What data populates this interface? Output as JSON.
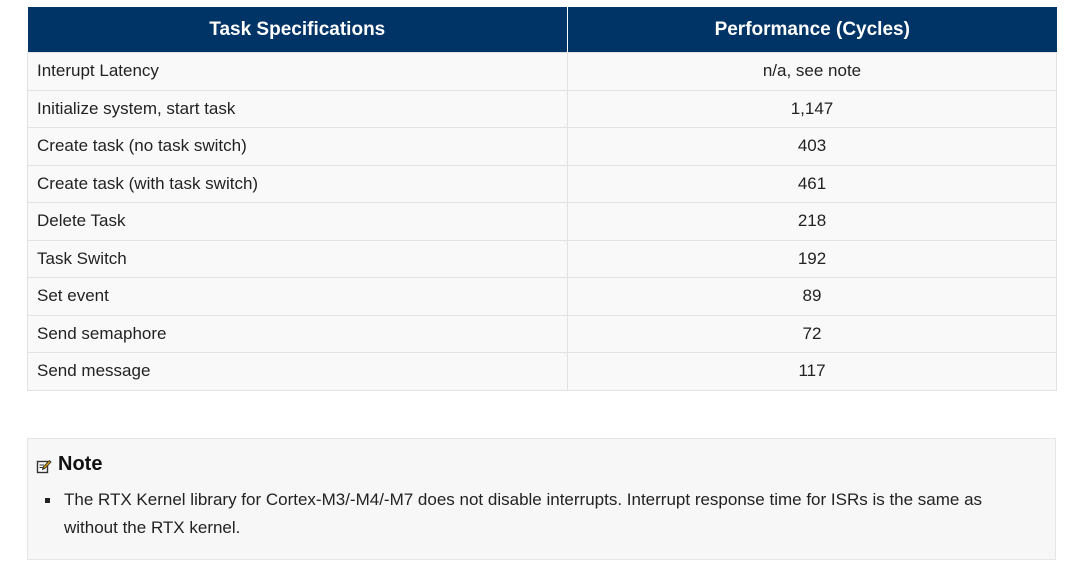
{
  "table": {
    "headers": [
      "Task Specifications",
      "Performance (Cycles)"
    ],
    "rows": [
      {
        "spec": "Interupt Latency",
        "cycles": "n/a, see note"
      },
      {
        "spec": "Initialize system, start task",
        "cycles": "1,147"
      },
      {
        "spec": "Create task (no task switch)",
        "cycles": "403"
      },
      {
        "spec": "Create task (with task switch)",
        "cycles": "461"
      },
      {
        "spec": "Delete Task",
        "cycles": "218"
      },
      {
        "spec": "Task Switch",
        "cycles": "192"
      },
      {
        "spec": "Set event",
        "cycles": "89"
      },
      {
        "spec": "Send semaphore",
        "cycles": "72"
      },
      {
        "spec": "Send message",
        "cycles": "117"
      }
    ]
  },
  "note": {
    "icon": "edit-note-icon",
    "title": "Note",
    "items": [
      "The RTX Kernel library for Cortex-M3/-M4/-M7 does not disable interrupts. Interrupt response time for ISRs is the same as without the RTX kernel."
    ]
  }
}
